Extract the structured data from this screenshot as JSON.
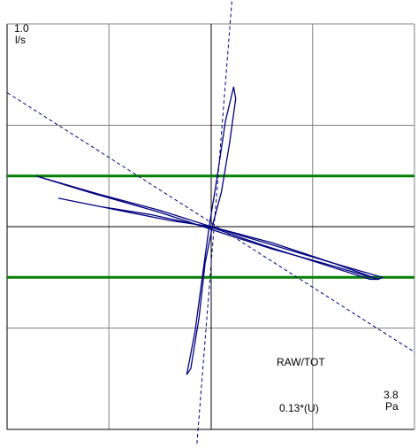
{
  "chart_data": {
    "type": "line",
    "y_axis": {
      "max_value": "1.0",
      "unit": "l/s"
    },
    "x_axis": {
      "max_value": "3.8",
      "unit": "Pa"
    },
    "annotations": {
      "measure": "RAW/TOT",
      "value": "0.13*(U)"
    },
    "grid": {
      "on": true,
      "color": "#808080",
      "x_divisions": 4,
      "y_divisions": 4
    },
    "reference_lines": {
      "color": "#008000",
      "fractions_of_y_range": [
        0.25,
        -0.25
      ]
    },
    "curve_color": "#00007f",
    "axis_color": "#000000",
    "dashed_lines": [
      {
        "name": "resistance-fit",
        "points": [
          [
            -1.0,
            0.66
          ],
          [
            1.0,
            -0.62
          ]
        ]
      },
      {
        "name": "flow-axis-fit",
        "points": [
          [
            -0.07,
            -1.07
          ],
          [
            0.11,
            1.22
          ]
        ]
      }
    ],
    "series": [
      {
        "points": [
          [
            -0.12,
            -0.73
          ],
          [
            -0.08,
            -0.52
          ],
          [
            -0.04,
            -0.22
          ],
          [
            -0.01,
            0.0
          ],
          [
            0.03,
            0.25
          ],
          [
            0.07,
            0.52
          ],
          [
            0.11,
            0.69
          ],
          [
            0.12,
            0.63
          ],
          [
            0.09,
            0.41
          ],
          [
            0.05,
            0.17
          ],
          [
            0.01,
            0.02
          ],
          [
            -0.03,
            -0.18
          ],
          [
            -0.06,
            -0.45
          ],
          [
            -0.1,
            -0.7
          ],
          [
            -0.12,
            -0.73
          ]
        ]
      },
      {
        "points": [
          [
            -0.86,
            0.25
          ],
          [
            -0.55,
            0.16
          ],
          [
            -0.25,
            0.08
          ],
          [
            0.0,
            0.0
          ],
          [
            0.3,
            -0.09
          ],
          [
            0.6,
            -0.18
          ],
          [
            0.84,
            -0.25
          ],
          [
            0.82,
            -0.26
          ],
          [
            0.55,
            -0.18
          ],
          [
            0.3,
            -0.11
          ],
          [
            0.05,
            -0.03
          ],
          [
            -0.25,
            0.07
          ],
          [
            -0.6,
            0.17
          ],
          [
            -0.86,
            0.25
          ]
        ]
      },
      {
        "points": [
          [
            -0.75,
            0.14
          ],
          [
            -0.45,
            0.08
          ],
          [
            -0.2,
            0.03
          ],
          [
            0.0,
            0.0
          ],
          [
            0.3,
            -0.08
          ],
          [
            0.6,
            -0.18
          ],
          [
            0.82,
            -0.26
          ],
          [
            0.78,
            -0.26
          ],
          [
            0.5,
            -0.17
          ],
          [
            0.25,
            -0.09
          ],
          [
            0.02,
            -0.01
          ],
          [
            -0.3,
            0.06
          ],
          [
            -0.55,
            0.1
          ],
          [
            -0.75,
            0.14
          ]
        ]
      }
    ]
  }
}
